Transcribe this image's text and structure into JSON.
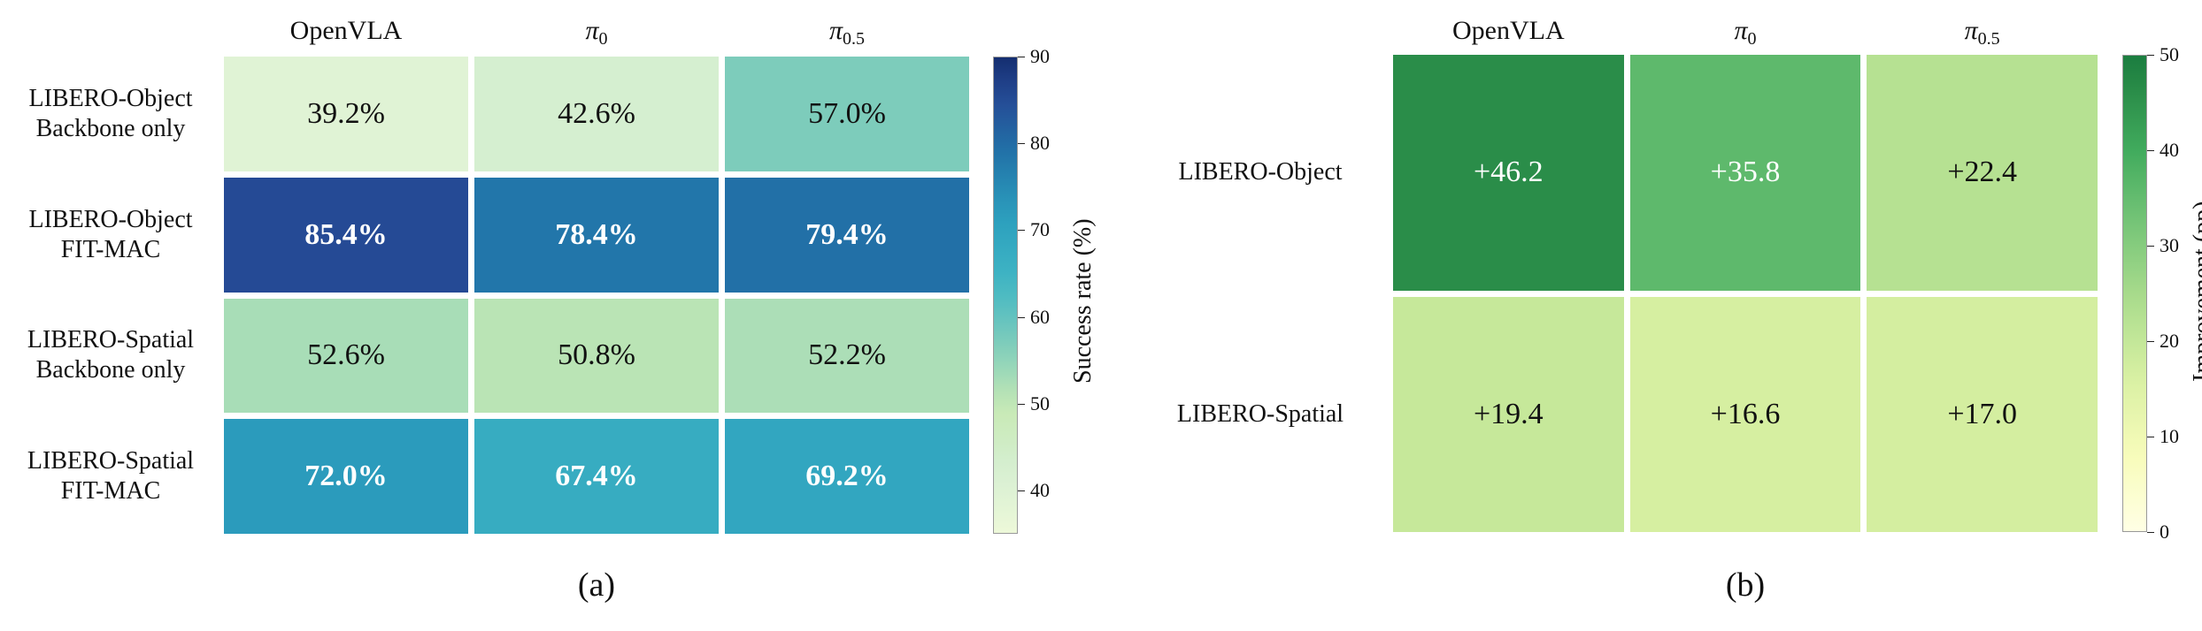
{
  "chart_data": [
    {
      "type": "heatmap",
      "caption": "(a)",
      "columns": [
        {
          "main": "OpenVLA",
          "sub": ""
        },
        {
          "main": "π",
          "sub": "0"
        },
        {
          "main": "π",
          "sub": "0.5"
        }
      ],
      "rows": [
        "LIBERO-Object\nBackbone only",
        "LIBERO-Object\nFIT-MAC",
        "LIBERO-Spatial\nBackbone only",
        "LIBERO-Spatial\nFIT-MAC"
      ],
      "values": [
        [
          39.2,
          42.6,
          57.0
        ],
        [
          85.4,
          78.4,
          79.4
        ],
        [
          52.6,
          50.8,
          52.2
        ],
        [
          72.0,
          67.4,
          69.2
        ]
      ],
      "labels": [
        [
          "39.2%",
          "42.6%",
          "57.0%"
        ],
        [
          "85.4%",
          "78.4%",
          "79.4%"
        ],
        [
          "52.6%",
          "50.8%",
          "52.2%"
        ],
        [
          "72.0%",
          "67.4%",
          "69.2%"
        ]
      ],
      "bold_rows": [
        1,
        3
      ],
      "colorbar": {
        "label": "Success rate (%)",
        "range": [
          35,
          90
        ],
        "ticks": [
          "40",
          "50",
          "60",
          "70",
          "80",
          "90"
        ],
        "tick_values": [
          40,
          50,
          60,
          70,
          80,
          90
        ],
        "colormap": "YlGnBu"
      }
    },
    {
      "type": "heatmap",
      "caption": "(b)",
      "columns": [
        {
          "main": "OpenVLA",
          "sub": ""
        },
        {
          "main": "π",
          "sub": "0"
        },
        {
          "main": "π",
          "sub": "0.5"
        }
      ],
      "rows": [
        "LIBERO-Object",
        "LIBERO-Spatial"
      ],
      "values": [
        [
          46.2,
          35.8,
          22.4
        ],
        [
          19.4,
          16.6,
          17.0
        ]
      ],
      "labels": [
        [
          "+46.2",
          "+35.8",
          "+22.4"
        ],
        [
          "+19.4",
          "+16.6",
          "+17.0"
        ]
      ],
      "bold_rows": [],
      "colorbar": {
        "label": "Improvement (pp)",
        "range": [
          0,
          50
        ],
        "ticks": [
          "0",
          "10",
          "20",
          "30",
          "40",
          "50"
        ],
        "tick_values": [
          0,
          10,
          20,
          30,
          40,
          50
        ],
        "colormap": "YlGn"
      }
    }
  ]
}
